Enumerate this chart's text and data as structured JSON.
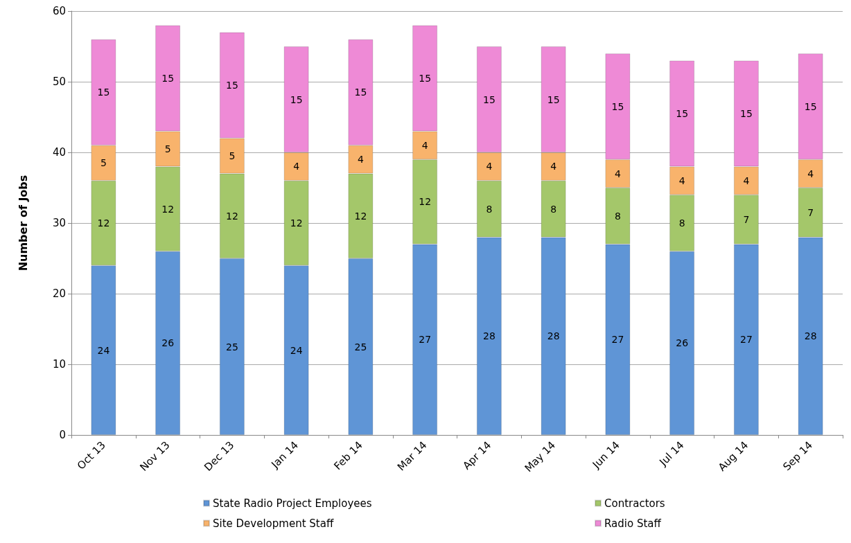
{
  "chart_data": {
    "type": "bar",
    "stacked": true,
    "ylabel": "Number of Jobs",
    "categories": [
      "Oct 13",
      "Nov 13",
      "Dec 13",
      "Jan 14",
      "Feb 14",
      "Mar 14",
      "Apr 14",
      "May 14",
      "Jun 14",
      "Jul 14",
      "Aug 14",
      "Sep 14"
    ],
    "series": [
      {
        "name": "State Radio Project Employees",
        "color": "#5f95d6",
        "values": [
          24,
          26,
          25,
          24,
          25,
          27,
          28,
          28,
          27,
          26,
          27,
          28
        ]
      },
      {
        "name": "Contractors",
        "color": "#a4c76a",
        "values": [
          12,
          12,
          12,
          12,
          12,
          12,
          8,
          8,
          8,
          8,
          7,
          7
        ]
      },
      {
        "name": "Site Development Staff",
        "color": "#f8b36c",
        "values": [
          5,
          5,
          5,
          4,
          4,
          4,
          4,
          4,
          4,
          4,
          4,
          4
        ]
      },
      {
        "name": "Radio Staff",
        "color": "#ee8ad6",
        "values": [
          15,
          15,
          15,
          15,
          15,
          15,
          15,
          15,
          15,
          15,
          15,
          15
        ]
      }
    ],
    "ylim": [
      0,
      60
    ],
    "yticks": [
      0,
      10,
      20,
      30,
      40,
      50,
      60
    ],
    "grid": "y",
    "legend": "bottom",
    "data_labels": true
  }
}
